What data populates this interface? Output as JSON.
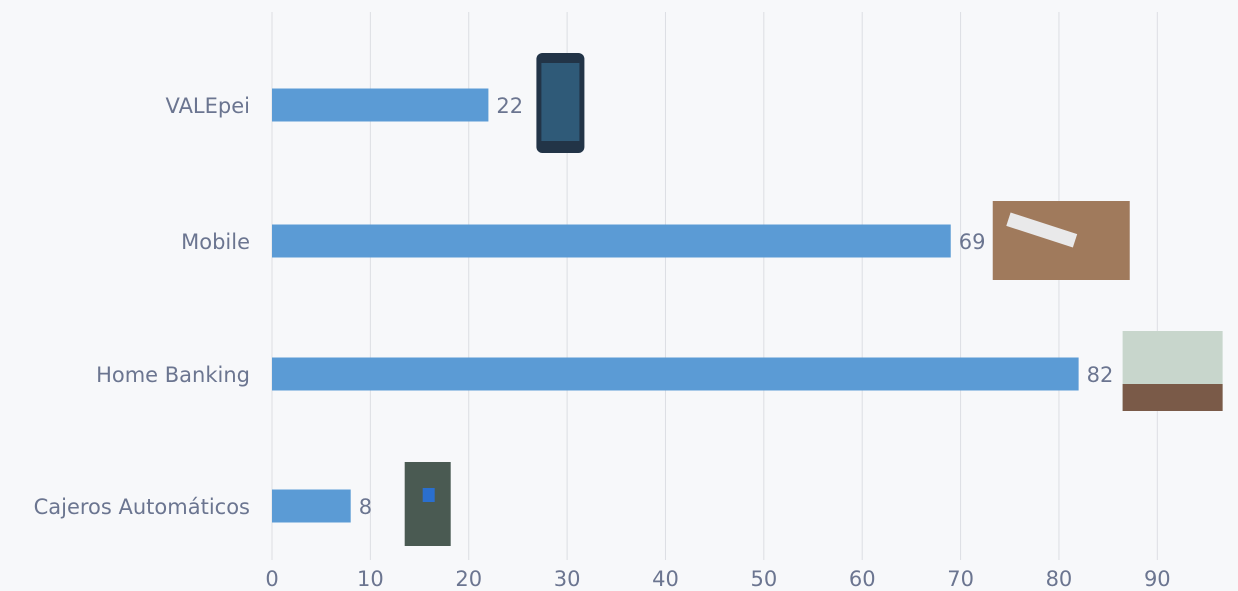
{
  "chart_data": {
    "type": "bar",
    "orientation": "horizontal",
    "categories": [
      "VALEpei",
      "Mobile",
      "Home Banking",
      "Cajeros Automáticos"
    ],
    "values": [
      22,
      69,
      82,
      8
    ],
    "color": "#5b9bd5",
    "xlim": [
      0,
      98
    ],
    "xticks": [
      0,
      10,
      20,
      30,
      40,
      50,
      60,
      70,
      80,
      90
    ],
    "grid": true
  }
}
